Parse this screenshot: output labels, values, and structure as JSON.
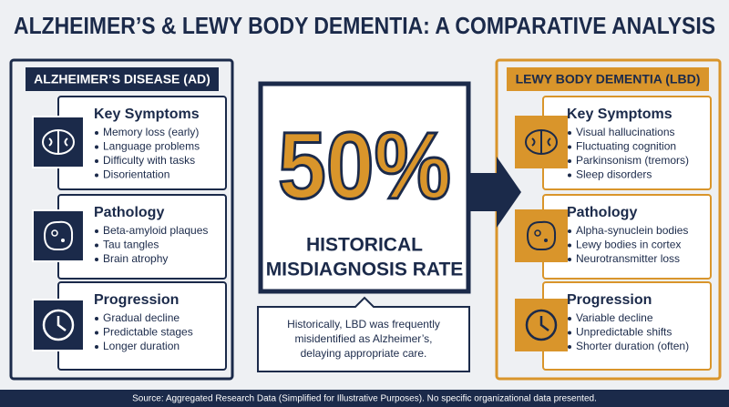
{
  "title": "ALZHEIMER’S & LEWY BODY DEMENTIA: A COMPARATIVE ANALYSIS",
  "left": {
    "header": "ALZHEIMER’S DISEASE (AD)",
    "sections": [
      {
        "heading": "Key Symptoms",
        "items": [
          "Memory loss (early)",
          "Language problems",
          "Difficulty with tasks",
          "Disorientation"
        ]
      },
      {
        "heading": "Pathology",
        "items": [
          "Beta-amyloid plaques",
          "Tau tangles",
          "Brain atrophy"
        ]
      },
      {
        "heading": "Progression",
        "items": [
          "Gradual decline",
          "Predictable stages",
          "Longer duration"
        ]
      }
    ]
  },
  "right": {
    "header": "LEWY BODY DEMENTIA (LBD)",
    "sections": [
      {
        "heading": "Key Symptoms",
        "items": [
          "Visual hallucinations",
          "Fluctuating cognition",
          "Parkinsonism (tremors)",
          "Sleep disorders"
        ]
      },
      {
        "heading": "Pathology",
        "items": [
          "Alpha-synuclein bodies",
          "Lewy bodies in cortex",
          "Neurotransmitter loss"
        ]
      },
      {
        "heading": "Progression",
        "items": [
          "Variable decline",
          "Unpredictable shifts",
          "Shorter duration (often)"
        ]
      }
    ]
  },
  "center": {
    "stat": "50%",
    "label_lines": [
      "HISTORICAL",
      "MISDIAGNOSIS RATE"
    ],
    "note_lines": [
      "Historically, LBD was frequently",
      "misidentified as Alzheimer’s,",
      "delaying appropriate care."
    ]
  },
  "footer": "Source: Aggregated Research Data (Simplified for Illustrative Purposes). No specific organizational data presented."
}
